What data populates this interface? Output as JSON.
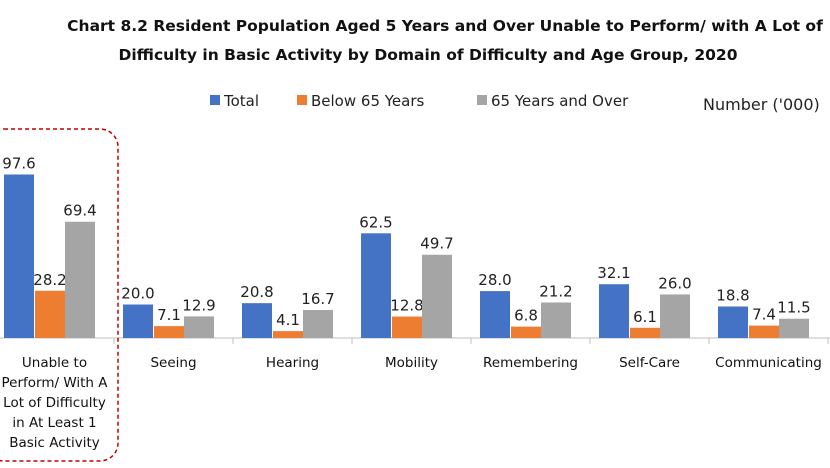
{
  "title_line1": "Chart 8.2  Resident Population Aged 5 Years and Over Unable to Perform/ with A Lot of",
  "title_line2": "Difficulty in Basic Activity by Domain of Difficulty and Age Group, 2020",
  "unit_label": "Number ('000)",
  "colors": {
    "Total": "#4472c4",
    "Below 65 Years": "#ed7d31",
    "65 Years and Over": "#a5a5a5",
    "highlight_border": "#c00000"
  },
  "chart_data": {
    "type": "bar",
    "title": "Chart 8.2  Resident Population Aged 5 Years and Over Unable to Perform/ with A Lot of Difficulty in Basic Activity by Domain of Difficulty and Age Group, 2020",
    "ylabel": "Number ('000)",
    "ylim": [
      0,
      100
    ],
    "legend_position": "top",
    "grid": false,
    "categories": [
      [
        "Unable to",
        "Perform/ With A",
        "Lot of Difficulty",
        "in At Least 1",
        "Basic Activity"
      ],
      [
        "Seeing"
      ],
      [
        "Hearing"
      ],
      [
        "Mobility"
      ],
      [
        "Remembering"
      ],
      [
        "Self-Care"
      ],
      [
        "Communicating"
      ]
    ],
    "series": [
      {
        "name": "Total",
        "values": [
          97.6,
          20.0,
          20.8,
          62.5,
          28.0,
          32.1,
          18.8
        ],
        "labels": [
          "97.6",
          "20.0",
          "20.8",
          "62.5",
          "28.0",
          "32.1",
          "18.8"
        ]
      },
      {
        "name": "Below 65 Years",
        "values": [
          28.2,
          7.1,
          4.1,
          12.8,
          6.8,
          6.1,
          7.4
        ],
        "labels": [
          "28.2",
          "7.1",
          "4.1",
          "12.8",
          "6.8",
          "6.1",
          "7.4"
        ]
      },
      {
        "name": "65 Years and Over",
        "values": [
          69.4,
          12.9,
          16.7,
          49.7,
          21.2,
          26.0,
          11.5
        ],
        "labels": [
          "69.4",
          "12.9",
          "16.7",
          "49.7",
          "21.2",
          "26.0",
          "11.5"
        ]
      }
    ]
  }
}
